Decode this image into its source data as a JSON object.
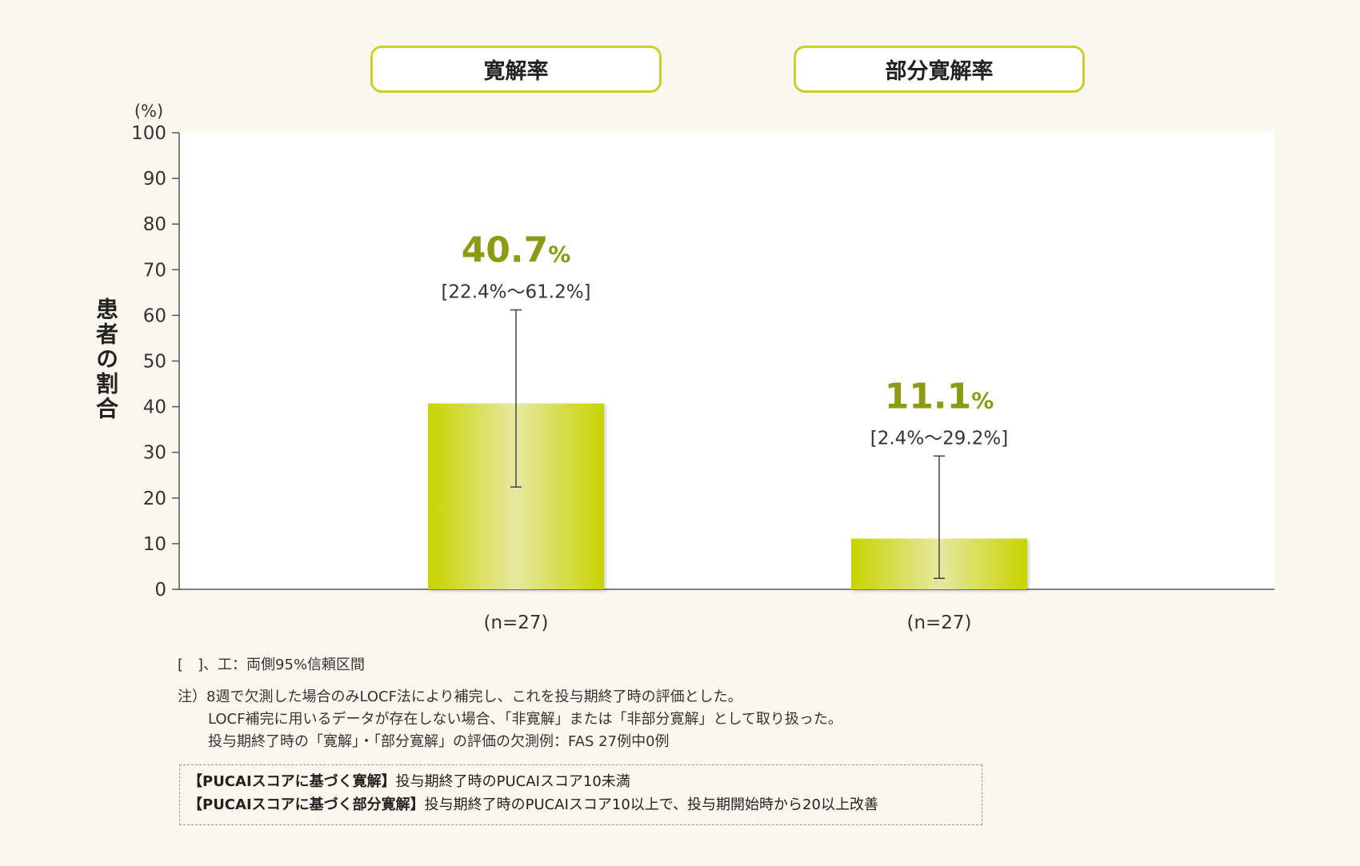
{
  "headers": [
    "寛解率",
    "部分寛解率"
  ],
  "chart_data": {
    "type": "bar",
    "categories": [
      "寛解率",
      "部分寛解率"
    ],
    "values": [
      40.7,
      11.1
    ],
    "ci": [
      [
        22.4,
        61.2
      ],
      [
        2.4,
        29.2
      ]
    ],
    "value_labels": [
      "40.7",
      "11.1"
    ],
    "value_unit": "%",
    "ci_labels": [
      "[22.4%～61.2%]",
      "[2.4%～29.2%]"
    ],
    "n_labels": [
      "(n=27)",
      "(n=27)"
    ],
    "ylabel": "患者の割合",
    "yunit": "(%)",
    "ylim": [
      0,
      100
    ],
    "yticks": [
      0,
      10,
      20,
      30,
      40,
      50,
      60,
      70,
      80,
      90,
      100
    ],
    "colors": {
      "bar_edge": "#c8d400",
      "bar_center": "#e6e8a0",
      "value_text": "#8c9a14"
    }
  },
  "notes": {
    "legend": "[　]、工：両側95%信頼区間",
    "note_prefix": "注）",
    "lines": [
      "8週で欠測した場合のみLOCF法により補完し、これを投与期終了時の評価とした。",
      "LOCF補完に用いるデータが存在しない場合、「非寛解」または「非部分寛解」として取り扱った。",
      "投与期終了時の「寛解」・「部分寛解」の評価の欠測例：FAS 27例中0例"
    ]
  },
  "definitions": [
    {
      "term": "【PUCAIスコアに基づく寛解】",
      "text": "投与期終了時のPUCAIスコア10未満"
    },
    {
      "term": "【PUCAIスコアに基づく部分寛解】",
      "text": "投与期終了時のPUCAIスコア10以上で、投与期開始時から20以上改善"
    }
  ]
}
